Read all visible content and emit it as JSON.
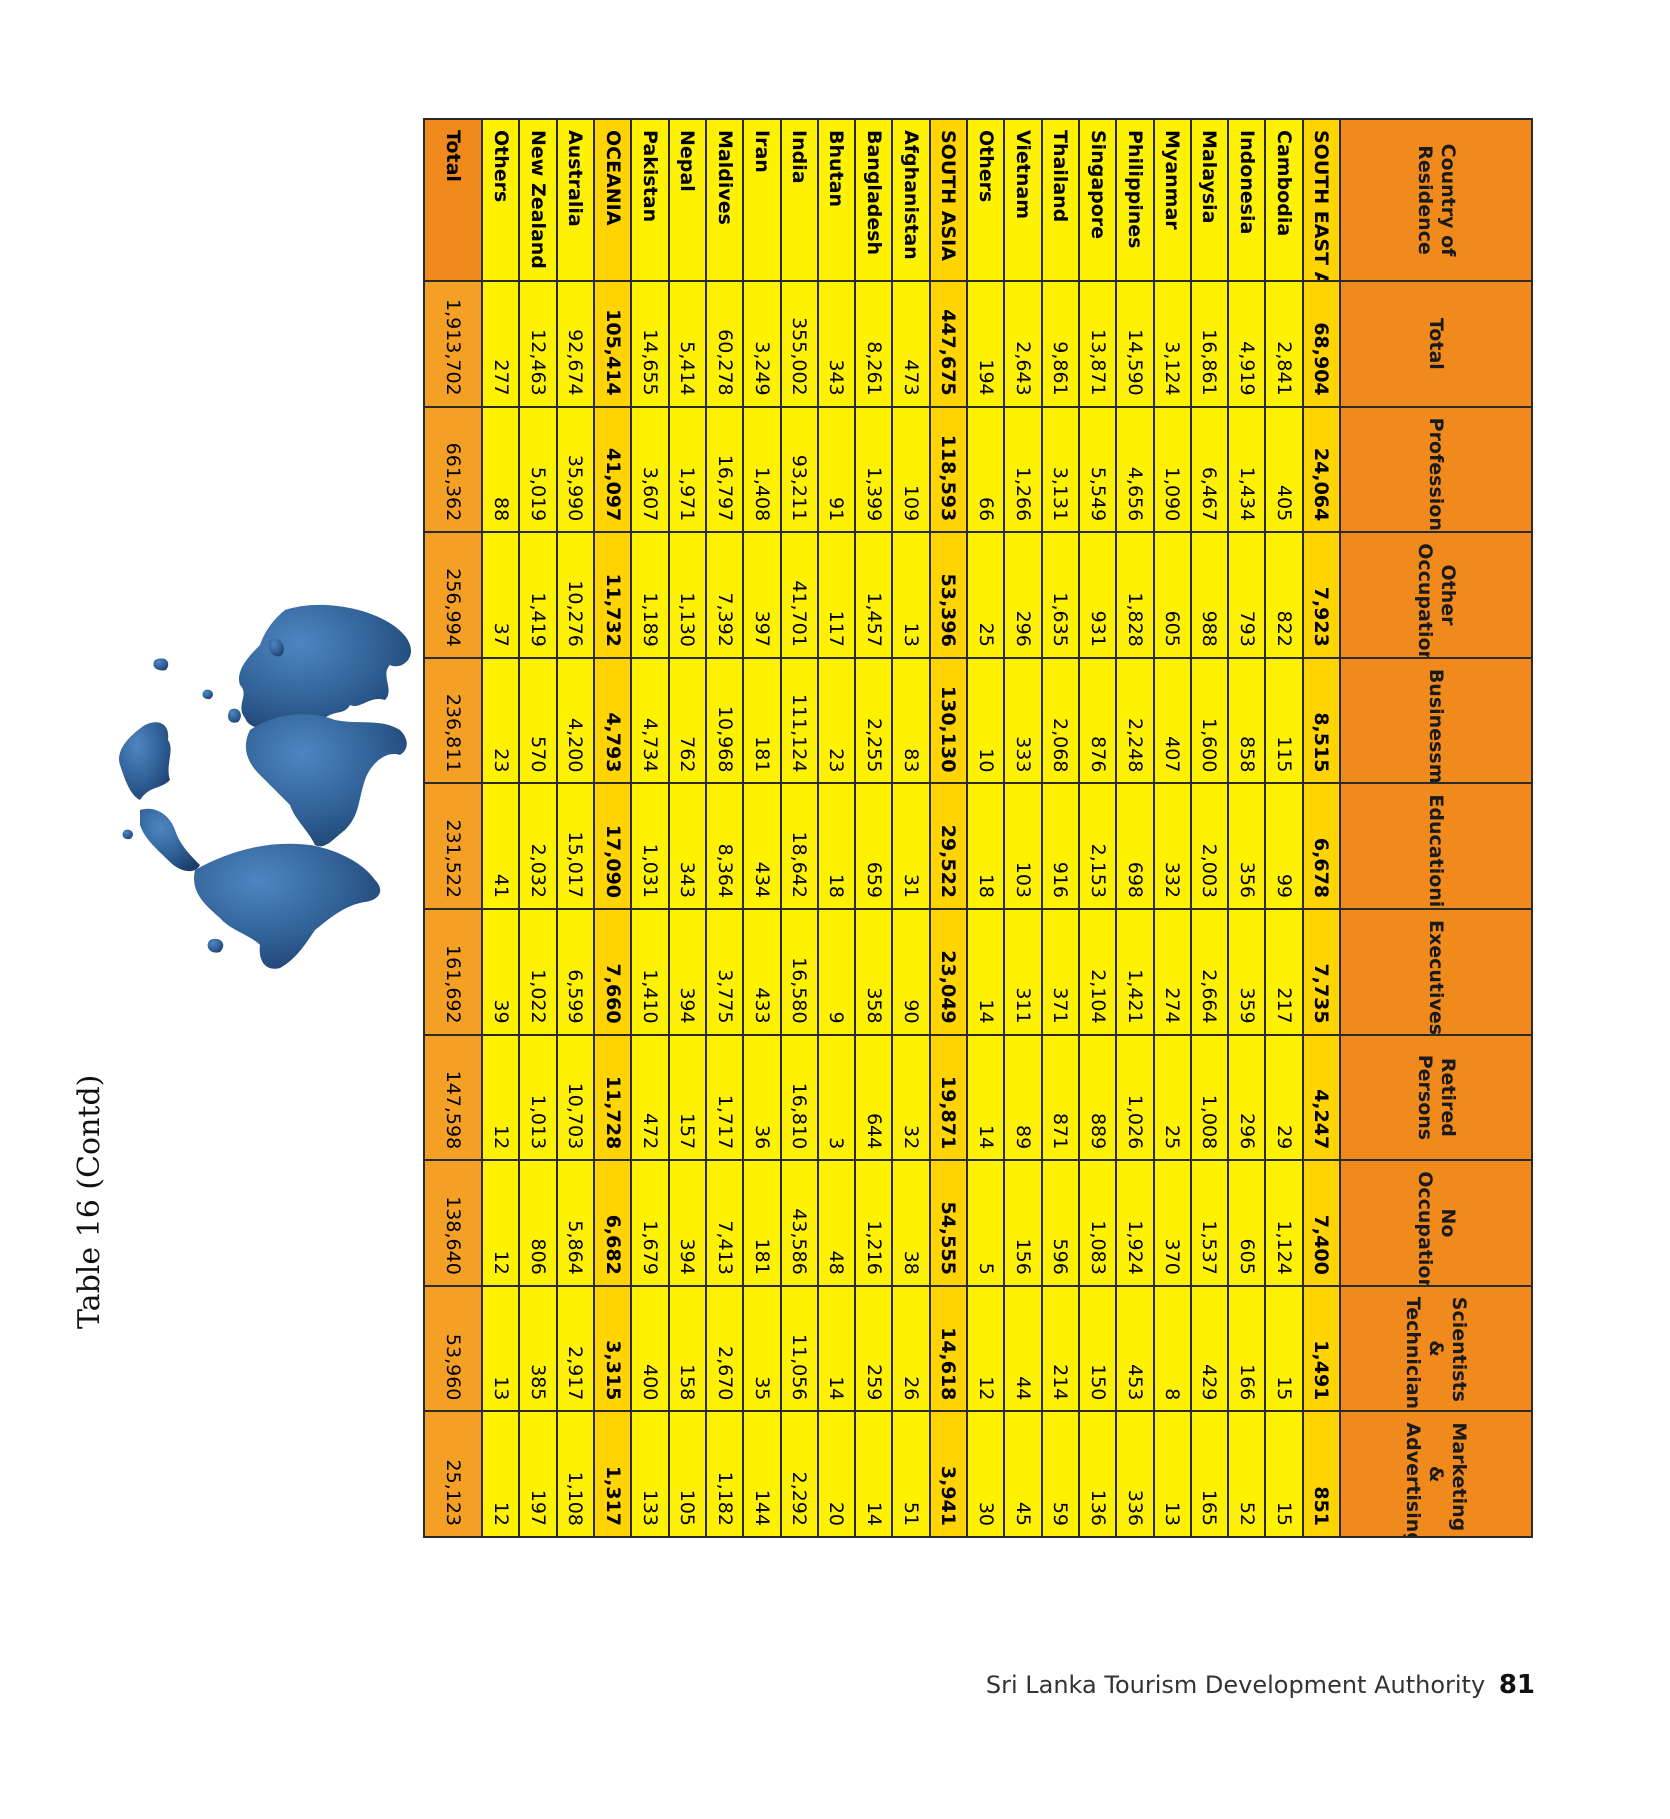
{
  "title": "Table 16 (Contd)",
  "headers": [
    "Country of Residence",
    "Total",
    "Professionals",
    "Other Occupation",
    "Businessmen",
    "Educationists",
    "Executives",
    "Retired Persons",
    "No Occupation",
    "Scientists & Technicians",
    "Marketing & Advertising"
  ],
  "rows": [
    {
      "name": "SOUTH EAST ASIA",
      "region": true,
      "values": [
        "68,904",
        "24,064",
        "7,923",
        "8,515",
        "6,678",
        "7,735",
        "4,247",
        "7,400",
        "1,491",
        "851"
      ]
    },
    {
      "name": "Cambodia",
      "values": [
        "2,841",
        "405",
        "822",
        "115",
        "99",
        "217",
        "29",
        "1,124",
        "15",
        "15"
      ]
    },
    {
      "name": "Indonesia",
      "values": [
        "4,919",
        "1,434",
        "793",
        "858",
        "356",
        "359",
        "296",
        "605",
        "166",
        "52"
      ]
    },
    {
      "name": "Malaysia",
      "values": [
        "16,861",
        "6,467",
        "988",
        "1,600",
        "2,003",
        "2,664",
        "1,008",
        "1,537",
        "429",
        "165"
      ]
    },
    {
      "name": "Myanmar",
      "values": [
        "3,124",
        "1,090",
        "605",
        "407",
        "332",
        "274",
        "25",
        "370",
        "8",
        "13"
      ]
    },
    {
      "name": "Philippines",
      "values": [
        "14,590",
        "4,656",
        "1,828",
        "2,248",
        "698",
        "1,421",
        "1,026",
        "1,924",
        "453",
        "336"
      ]
    },
    {
      "name": "Singapore",
      "values": [
        "13,871",
        "5,549",
        "931",
        "876",
        "2,153",
        "2,104",
        "889",
        "1,083",
        "150",
        "136"
      ]
    },
    {
      "name": "Thailand",
      "values": [
        "9,861",
        "3,131",
        "1,635",
        "2,068",
        "916",
        "371",
        "871",
        "596",
        "214",
        "59"
      ]
    },
    {
      "name": "Vietnam",
      "values": [
        "2,643",
        "1,266",
        "296",
        "333",
        "103",
        "311",
        "89",
        "156",
        "44",
        "45"
      ]
    },
    {
      "name": "Others",
      "values": [
        "194",
        "66",
        "25",
        "10",
        "18",
        "14",
        "14",
        "5",
        "12",
        "30"
      ]
    },
    {
      "name": "SOUTH ASIA",
      "region": true,
      "values": [
        "447,675",
        "118,593",
        "53,396",
        "130,130",
        "29,522",
        "23,049",
        "19,871",
        "54,555",
        "14,618",
        "3,941"
      ]
    },
    {
      "name": "Afghanistan",
      "values": [
        "473",
        "109",
        "13",
        "83",
        "31",
        "90",
        "32",
        "38",
        "26",
        "51"
      ]
    },
    {
      "name": "Bangladesh",
      "values": [
        "8,261",
        "1,399",
        "1,457",
        "2,255",
        "659",
        "358",
        "644",
        "1,216",
        "259",
        "14"
      ]
    },
    {
      "name": "Bhutan",
      "values": [
        "343",
        "91",
        "117",
        "23",
        "18",
        "9",
        "3",
        "48",
        "14",
        "20"
      ]
    },
    {
      "name": "India",
      "values": [
        "355,002",
        "93,211",
        "41,701",
        "111,124",
        "18,642",
        "16,580",
        "16,810",
        "43,586",
        "11,056",
        "2,292"
      ]
    },
    {
      "name": "Iran",
      "values": [
        "3,249",
        "1,408",
        "397",
        "181",
        "434",
        "433",
        "36",
        "181",
        "35",
        "144"
      ]
    },
    {
      "name": "Maldives",
      "values": [
        "60,278",
        "16,797",
        "7,392",
        "10,968",
        "8,364",
        "3,775",
        "1,717",
        "7,413",
        "2,670",
        "1,182"
      ]
    },
    {
      "name": "Nepal",
      "values": [
        "5,414",
        "1,971",
        "1,130",
        "762",
        "343",
        "394",
        "157",
        "394",
        "158",
        "105"
      ]
    },
    {
      "name": "Pakistan",
      "values": [
        "14,655",
        "3,607",
        "1,189",
        "4,734",
        "1,031",
        "1,410",
        "472",
        "1,679",
        "400",
        "133"
      ]
    },
    {
      "name": "OCEANIA",
      "region": true,
      "values": [
        "105,414",
        "41,097",
        "11,732",
        "4,793",
        "17,090",
        "7,660",
        "11,728",
        "6,682",
        "3,315",
        "1,317"
      ]
    },
    {
      "name": "Australia",
      "values": [
        "92,674",
        "35,990",
        "10,276",
        "4,200",
        "15,017",
        "6,599",
        "10,703",
        "5,864",
        "2,917",
        "1,108"
      ]
    },
    {
      "name": "New Zealand",
      "values": [
        "12,463",
        "5,019",
        "1,419",
        "570",
        "2,032",
        "1,022",
        "1,013",
        "806",
        "385",
        "197"
      ]
    },
    {
      "name": "Others",
      "values": [
        "277",
        "88",
        "37",
        "23",
        "41",
        "39",
        "12",
        "12",
        "13",
        "12"
      ]
    },
    {
      "name": "Total",
      "total": true,
      "values": [
        "1,913,702",
        "661,362",
        "256,994",
        "236,811",
        "231,522",
        "161,692",
        "147,598",
        "138,640",
        "53,960",
        "25,123"
      ]
    }
  ],
  "footer": {
    "org": "Sri Lanka Tourism Development Authority",
    "page": "81"
  },
  "colors": {
    "header": "#f08a1c",
    "cell": "#fff200",
    "region": "#ffd400",
    "total": "#f4a024",
    "globe": "#2f5f95"
  }
}
